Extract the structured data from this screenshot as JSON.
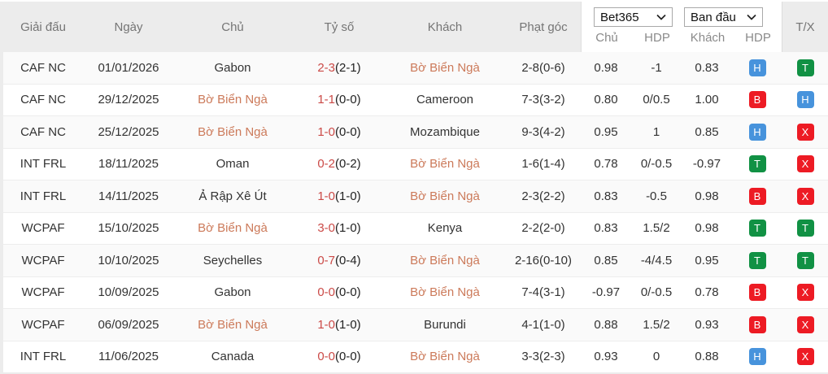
{
  "header": {
    "tournament": "Giải đấu",
    "date": "Ngày",
    "home": "Chủ",
    "score": "Tỷ số",
    "away": "Khách",
    "corners": "Phạt góc",
    "tx": "T/X",
    "bookmaker_select": "Bet365",
    "odds_type_select": "Ban đầu",
    "sub_home": "Chủ",
    "sub_hdp": "HDP",
    "sub_away": "Khách",
    "sub_hdp2": "HDP"
  },
  "colors": {
    "header_bg": "#ececec",
    "accent_team": "#cc7a5a",
    "score_red": "#cb4a47",
    "badge_blue": "#4793dc",
    "badge_green": "#119144",
    "badge_red": "#ed1b24"
  },
  "highlight_team": "Bờ Biển Ngà",
  "rows": [
    {
      "tournament": "CAF NC",
      "date": "01/01/2026",
      "home": "Gabon",
      "home_highlighted": false,
      "score": "2-3",
      "score_half": "(2-1)",
      "away": "Bờ Biển Ngà",
      "away_highlighted": true,
      "corners": "2-8(0-6)",
      "odds_home": "0.98",
      "hdp": "-1",
      "odds_away": "0.83",
      "hdp_result": {
        "letter": "H",
        "color": "blue"
      },
      "tx_result": {
        "letter": "T",
        "color": "green"
      }
    },
    {
      "tournament": "CAF NC",
      "date": "29/12/2025",
      "home": "Bờ Biển Ngà",
      "home_highlighted": true,
      "score": "1-1",
      "score_half": "(0-0)",
      "away": "Cameroon",
      "away_highlighted": false,
      "corners": "7-3(3-2)",
      "odds_home": "0.80",
      "hdp": "0/0.5",
      "odds_away": "1.00",
      "hdp_result": {
        "letter": "B",
        "color": "red"
      },
      "tx_result": {
        "letter": "H",
        "color": "blue"
      }
    },
    {
      "tournament": "CAF NC",
      "date": "25/12/2025",
      "home": "Bờ Biển Ngà",
      "home_highlighted": true,
      "score": "1-0",
      "score_half": "(0-0)",
      "away": "Mozambique",
      "away_highlighted": false,
      "corners": "9-3(4-2)",
      "odds_home": "0.95",
      "hdp": "1",
      "odds_away": "0.85",
      "hdp_result": {
        "letter": "H",
        "color": "blue"
      },
      "tx_result": {
        "letter": "X",
        "color": "red"
      }
    },
    {
      "tournament": "INT FRL",
      "date": "18/11/2025",
      "home": "Oman",
      "home_highlighted": false,
      "score": "0-2",
      "score_half": "(0-2)",
      "away": "Bờ Biển Ngà",
      "away_highlighted": true,
      "corners": "1-6(1-4)",
      "odds_home": "0.78",
      "hdp": "0/-0.5",
      "odds_away": "-0.97",
      "hdp_result": {
        "letter": "T",
        "color": "green"
      },
      "tx_result": {
        "letter": "X",
        "color": "red"
      }
    },
    {
      "tournament": "INT FRL",
      "date": "14/11/2025",
      "home": "Ả Rập Xê Út",
      "home_highlighted": false,
      "score": "1-0",
      "score_half": "(1-0)",
      "away": "Bờ Biển Ngà",
      "away_highlighted": true,
      "corners": "2-3(2-2)",
      "odds_home": "0.83",
      "hdp": "-0.5",
      "odds_away": "0.98",
      "hdp_result": {
        "letter": "B",
        "color": "red"
      },
      "tx_result": {
        "letter": "X",
        "color": "red"
      }
    },
    {
      "tournament": "WCPAF",
      "date": "15/10/2025",
      "home": "Bờ Biển Ngà",
      "home_highlighted": true,
      "score": "3-0",
      "score_half": "(1-0)",
      "away": "Kenya",
      "away_highlighted": false,
      "corners": "2-2(2-0)",
      "odds_home": "0.83",
      "hdp": "1.5/2",
      "odds_away": "0.98",
      "hdp_result": {
        "letter": "T",
        "color": "green"
      },
      "tx_result": {
        "letter": "T",
        "color": "green"
      }
    },
    {
      "tournament": "WCPAF",
      "date": "10/10/2025",
      "home": "Seychelles",
      "home_highlighted": false,
      "score": "0-7",
      "score_half": "(0-4)",
      "away": "Bờ Biển Ngà",
      "away_highlighted": true,
      "corners": "2-16(0-10)",
      "odds_home": "0.85",
      "hdp": "-4/4.5",
      "odds_away": "0.95",
      "hdp_result": {
        "letter": "T",
        "color": "green"
      },
      "tx_result": {
        "letter": "T",
        "color": "green"
      }
    },
    {
      "tournament": "WCPAF",
      "date": "10/09/2025",
      "home": "Gabon",
      "home_highlighted": false,
      "score": "0-0",
      "score_half": "(0-0)",
      "away": "Bờ Biển Ngà",
      "away_highlighted": true,
      "corners": "7-4(3-1)",
      "odds_home": "-0.97",
      "hdp": "0/-0.5",
      "odds_away": "0.78",
      "hdp_result": {
        "letter": "B",
        "color": "red"
      },
      "tx_result": {
        "letter": "X",
        "color": "red"
      }
    },
    {
      "tournament": "WCPAF",
      "date": "06/09/2025",
      "home": "Bờ Biển Ngà",
      "home_highlighted": true,
      "score": "1-0",
      "score_half": "(1-0)",
      "away": "Burundi",
      "away_highlighted": false,
      "corners": "4-1(1-0)",
      "odds_home": "0.88",
      "hdp": "1.5/2",
      "odds_away": "0.93",
      "hdp_result": {
        "letter": "B",
        "color": "red"
      },
      "tx_result": {
        "letter": "X",
        "color": "red"
      }
    },
    {
      "tournament": "INT FRL",
      "date": "11/06/2025",
      "home": "Canada",
      "home_highlighted": false,
      "score": "0-0",
      "score_half": "(0-0)",
      "away": "Bờ Biển Ngà",
      "away_highlighted": true,
      "corners": "3-3(2-3)",
      "odds_home": "0.93",
      "hdp": "0",
      "odds_away": "0.88",
      "hdp_result": {
        "letter": "H",
        "color": "blue"
      },
      "tx_result": {
        "letter": "X",
        "color": "red"
      }
    }
  ]
}
